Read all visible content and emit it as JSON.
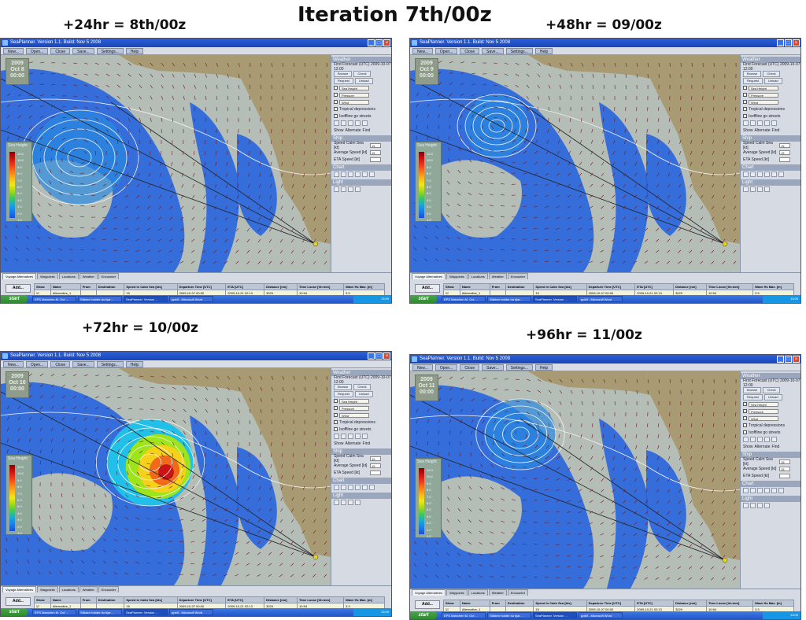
{
  "main_title": "Iteration 7th/00z",
  "app": {
    "window_title": "SeaPlanner. Version 1.1. Build: Nov 5 2008",
    "toolbar": [
      "New...",
      "Open...",
      "Close",
      "Save...",
      "Settings...",
      "Help"
    ],
    "panel": {
      "weather_title": "Weather",
      "forecast_text": "First Forecast (UTC) 2009-10-07 12:00",
      "browse_label": "Browse",
      "check_label": "Check",
      "request_label": "Request",
      "unload_label": "Unload",
      "layers": [
        "Sea Height",
        "Pressure",
        "Wind"
      ],
      "options": [
        "Tropical depressions",
        "Isoffline go streets"
      ],
      "radios": [
        "Show",
        "Alternate",
        "Find"
      ],
      "ship_title": "Ship",
      "ship_fields": [
        {
          "label": "Speed Calm Sea [kt]",
          "value": "15"
        },
        {
          "label": "Average Speed [kt]",
          "value": "15"
        },
        {
          "label": "ETA Speed [kt]",
          "value": ""
        }
      ],
      "chart_title": "Chart",
      "light_title": "Light"
    },
    "tabs": [
      "Voyage Alternatives",
      "Waypoints",
      "Locations",
      "Weather",
      "Encounter"
    ],
    "add_label": "Add...",
    "delete_label": "Delete",
    "table_headers": [
      "Show",
      "Name",
      "From",
      "Destination",
      "Speed in Calm Sea [kts]",
      "Departure Time [UTC]",
      "ETA [UTC]",
      "Distance [nm]",
      "Time Loose [hh:mm]",
      "Wave Hs Max. [m]"
    ],
    "taskbar": {
      "start_label": "start",
      "tasks": [
        "EPS Manchen M. Oct ...",
        "Stikken holder du hjar...",
        "SeaPlanner. Version ...",
        "pptdf - Microsoft Word"
      ],
      "clock": "13:09"
    },
    "rows": [
      {
        "name": "Alternative_1",
        "speed": "15",
        "departure": "2009-10-07 00:00",
        "eta": "2009-10-21 02:13",
        "distance": "3029",
        "loose": "10:54",
        "wave": "3.3"
      },
      {
        "name": "Alternative_2",
        "speed": "15",
        "departure": "2009-10-07 00:00",
        "eta": "2009-10-18 13:07",
        "distance": "4884",
        "loose": "4:48",
        "wave": "4.2"
      },
      {
        "name": "Alternative_3",
        "speed": "15",
        "departure": "2009-10-07 00:00",
        "eta": "2009-10-20 07:16",
        "distance": "4741",
        "loose": "6:00",
        "wave": "6.1"
      }
    ]
  },
  "legend_title": "Sea Height",
  "legend_labels": [
    "12.0",
    "10.0",
    "9.0",
    "8.0",
    "7.0",
    "6.0",
    "5.0",
    "4.0",
    "3.0",
    "2.0",
    "1.0"
  ],
  "legend_colors": [
    "#8b0000",
    "#c81414",
    "#ee3a1a",
    "#f77a1a",
    "#f7b81a",
    "#eee81a",
    "#9ed81a",
    "#3cc85a",
    "#1aa8d8",
    "#1a7ee8",
    "#1a4ed8"
  ],
  "panels": [
    {
      "caption": "+24hr = 8th/00z",
      "date_lines": [
        "2009",
        "Oct 8",
        "00:00"
      ],
      "status": {
        "coords": "47°21.0N 134°02.5W",
        "pressure_l": "Pressure:",
        "pressure_v": "1013hPa",
        "wind_l": "Wind:",
        "wind_v": "N/A",
        "current_l": "Current:",
        "current_v": "N/A",
        "waves_l": "Waves:",
        "waves_v": "N/A"
      }
    },
    {
      "caption": "+48hr = 09/00z",
      "date_lines": [
        "2009",
        "Oct 9",
        "00:00"
      ],
      "status": {
        "coords": "45°21.0N 128°05.3W",
        "pressure_l": "Pressure:",
        "pressure_v": "1013hPa",
        "wind_l": "Wind:",
        "wind_v": "3.2m/s 157°",
        "current_l": "Current:",
        "current_v": "N/A",
        "waves_l": "Waves:",
        "waves_v": "N/A"
      }
    },
    {
      "caption": "+72hr = 10/00z",
      "date_lines": [
        "2009",
        "Oct 10",
        "00:00"
      ],
      "status": {
        "coords": "51°55.0N 143°25.5W",
        "pressure_l": "Pressure:",
        "pressure_v": "1008hPa",
        "wind_l": "Wind:",
        "wind_v": "14.7m/s 145°",
        "current_l": "Current:",
        "current_v": "0.2m/s 222°",
        "waves_l": "Waves:",
        "waves_v": "3.4m 154° 7.0s"
      }
    },
    {
      "caption": "+96hr = 11/00z",
      "date_lines": [
        "2009",
        "Oct 11",
        "00:00"
      ],
      "status": {
        "coords": "40°21.0N 135°52.3W",
        "pressure_l": "Pressure:",
        "pressure_v": "1006hPa",
        "wind_l": "Wind:",
        "wind_v": "8.2m/s 151°",
        "current_l": "Current:",
        "current_v": "0.2m/s 204°",
        "waves_l": "Waves:",
        "waves_v": "3.2m 157° 7.5s"
      }
    }
  ]
}
